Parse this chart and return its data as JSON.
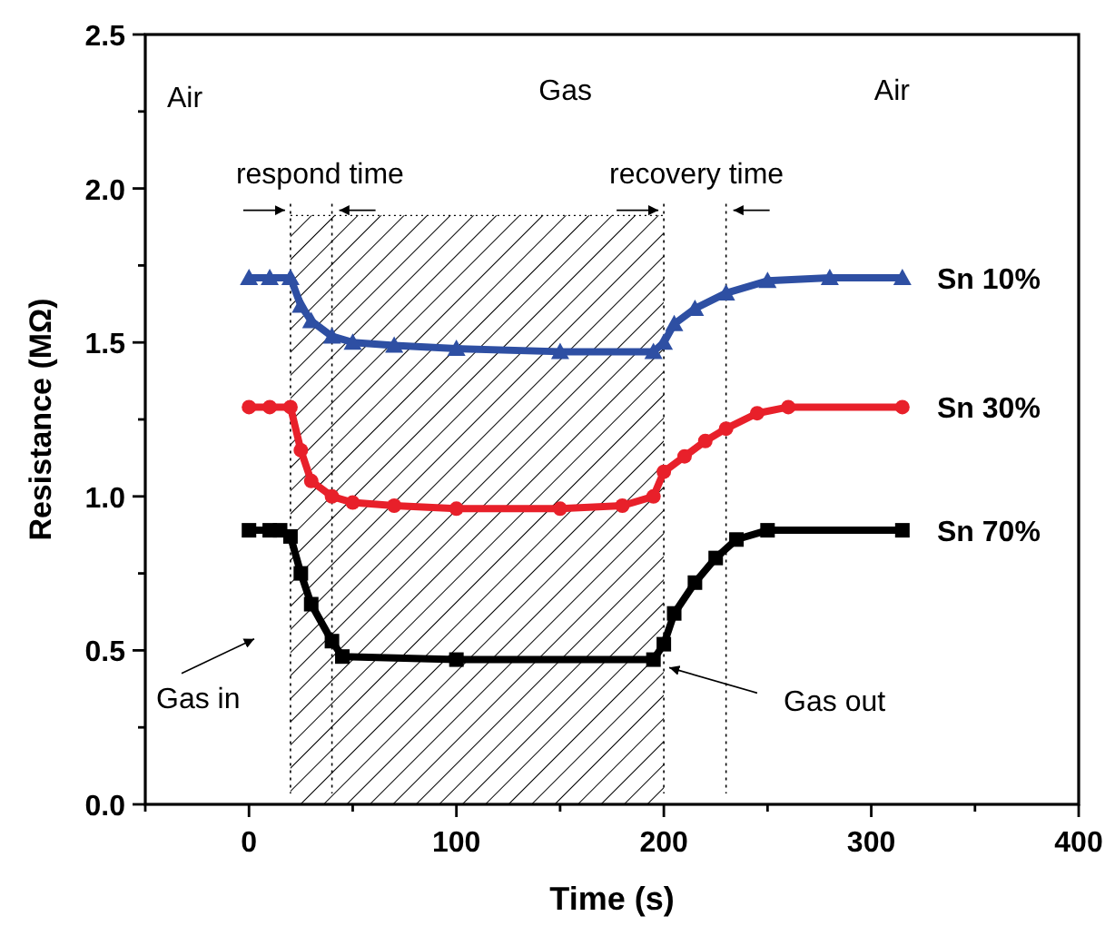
{
  "chart_data": {
    "type": "line",
    "xlabel": "Time (s)",
    "ylabel": "Resistance (MΩ)",
    "xlim": [
      -50,
      400
    ],
    "ylim": [
      0,
      2.5
    ],
    "xticks": [
      {
        "value": -50,
        "label": null
      },
      0,
      {
        "value": 50,
        "label": null
      },
      100,
      {
        "value": 150,
        "label": null
      },
      200,
      {
        "value": 250,
        "label": null
      },
      300,
      {
        "value": 350,
        "label": null
      },
      400
    ],
    "yticks": [
      {
        "value": 0,
        "label": "0.0"
      },
      {
        "value": 0.25,
        "label": null
      },
      {
        "value": 0.5,
        "label": "0.5"
      },
      {
        "value": 0.75,
        "label": null
      },
      {
        "value": 1,
        "label": "1.0"
      },
      {
        "value": 1.25,
        "label": null
      },
      {
        "value": 1.5,
        "label": "1.5"
      },
      {
        "value": 1.75,
        "label": null
      },
      {
        "value": 2,
        "label": "2.0"
      },
      {
        "value": 2.25,
        "label": null
      },
      {
        "value": 2.5,
        "label": "2.5"
      }
    ],
    "grid": false,
    "line_style": "solid",
    "series": [
      {
        "name": "Sn 10%",
        "color": "#2e4fa3",
        "marker": "triangle",
        "x": [
          0,
          10,
          20,
          25,
          30,
          40,
          50,
          70,
          100,
          150,
          195,
          200,
          205,
          215,
          230,
          250,
          280,
          315
        ],
        "values": [
          1.71,
          1.71,
          1.71,
          1.62,
          1.57,
          1.52,
          1.5,
          1.49,
          1.48,
          1.47,
          1.47,
          1.5,
          1.56,
          1.61,
          1.66,
          1.7,
          1.71,
          1.71
        ]
      },
      {
        "name": "Sn 30%",
        "color": "#e8202a",
        "marker": "circle",
        "x": [
          0,
          10,
          20,
          25,
          30,
          40,
          50,
          70,
          100,
          150,
          180,
          195,
          200,
          210,
          220,
          230,
          245,
          260,
          315
        ],
        "values": [
          1.29,
          1.29,
          1.29,
          1.15,
          1.05,
          1.0,
          0.98,
          0.97,
          0.96,
          0.96,
          0.97,
          1.0,
          1.08,
          1.13,
          1.18,
          1.22,
          1.27,
          1.29,
          1.29
        ]
      },
      {
        "name": "Sn 70%",
        "color": "#000000",
        "marker": "square",
        "x": [
          0,
          10,
          15,
          20,
          25,
          30,
          40,
          45,
          100,
          195,
          200,
          205,
          215,
          225,
          235,
          250,
          315
        ],
        "values": [
          0.89,
          0.89,
          0.89,
          0.87,
          0.75,
          0.65,
          0.53,
          0.48,
          0.47,
          0.47,
          0.52,
          0.62,
          0.72,
          0.8,
          0.86,
          0.89,
          0.89
        ]
      }
    ],
    "bands": [
      {
        "axis": "x",
        "from": 20,
        "to": 200,
        "color": "#000000"
      }
    ],
    "ref_lines": [
      {
        "axis": "x",
        "value": 20,
        "line_style": "dotted",
        "label": "respond time"
      },
      {
        "axis": "x",
        "value": 40,
        "line_style": "dotted"
      },
      {
        "axis": "x",
        "value": 200,
        "line_style": "dotted",
        "label": "recovery time"
      },
      {
        "axis": "x",
        "value": 230,
        "line_style": "dotted"
      }
    ],
    "annotations": [
      "Air",
      "Gas",
      "Air",
      "Gas in",
      {
        "text": "Gas out",
        "x": 200,
        "y": 0.45
      }
    ]
  }
}
